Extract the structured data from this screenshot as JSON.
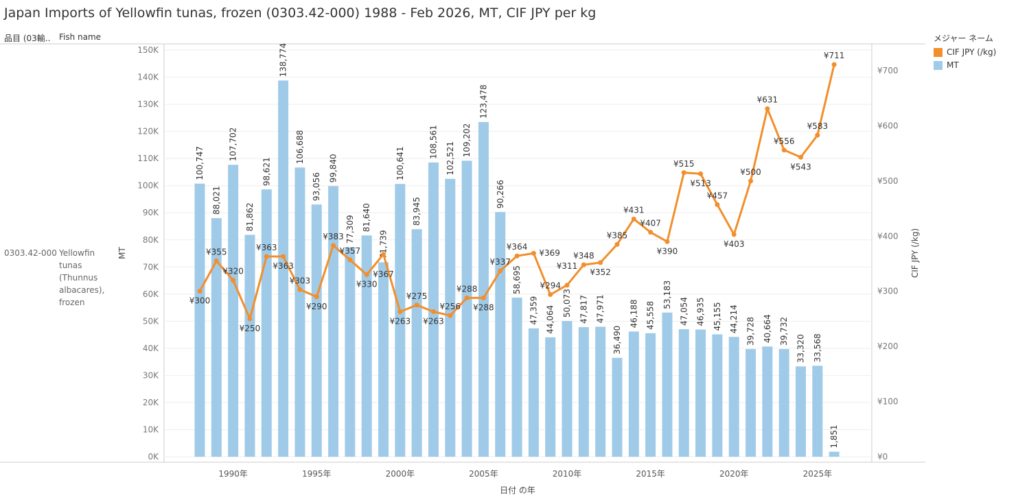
{
  "title": "Japan Imports of Yellowfin tunas, frozen (0303.42-000) 1988 - Feb 2026, MT, CIF JPY per kg",
  "headers": {
    "col1": "品目 (03輸..",
    "col2": "Fish name"
  },
  "row": {
    "code": "0303.42-000",
    "name": "Yellowfin tunas (Thunnus albacares), frozen"
  },
  "legend": {
    "title": "メジャー ネーム",
    "items": [
      {
        "label": "CIF JPY (/kg)",
        "color": "#f28e2b"
      },
      {
        "label": "MT",
        "color": "#a0cbe8"
      }
    ]
  },
  "chart_data": {
    "type": "bar+line",
    "title": "Japan Imports of Yellowfin tunas, frozen (0303.42-000) 1988 - Feb 2026, MT, CIF JPY per kg",
    "xlabel": "日付 の年",
    "ylabel": "MT",
    "y2label": "CIF JPY (/kg)",
    "ylim": [
      0,
      150000
    ],
    "y2lim": [
      0,
      750
    ],
    "yticks": [
      "0K",
      "10K",
      "20K",
      "30K",
      "40K",
      "50K",
      "60K",
      "70K",
      "80K",
      "90K",
      "100K",
      "110K",
      "120K",
      "130K",
      "140K",
      "150K"
    ],
    "y2ticks": [
      "¥0",
      "¥100",
      "¥200",
      "¥300",
      "¥400",
      "¥500",
      "¥600",
      "¥700"
    ],
    "xticks": [
      "1990年",
      "1995年",
      "2000年",
      "2005年",
      "2010年",
      "2015年",
      "2020年",
      "2025年"
    ],
    "x": [
      1988,
      1989,
      1990,
      1991,
      1992,
      1993,
      1994,
      1995,
      1996,
      1997,
      1998,
      1999,
      2000,
      2001,
      2002,
      2003,
      2004,
      2005,
      2006,
      2007,
      2008,
      2009,
      2010,
      2011,
      2012,
      2013,
      2014,
      2015,
      2016,
      2017,
      2018,
      2019,
      2020,
      2021,
      2022,
      2023,
      2024,
      2025,
      2026
    ],
    "series": [
      {
        "name": "MT",
        "type": "bar",
        "color": "#a0cbe8",
        "values": [
          100747,
          88021,
          107702,
          81862,
          98621,
          138774,
          106688,
          93056,
          99840,
          77309,
          81640,
          71739,
          100641,
          83945,
          108561,
          102521,
          109202,
          123478,
          90266,
          58695,
          47359,
          44064,
          50073,
          47817,
          47971,
          36490,
          46188,
          45558,
          53183,
          47054,
          46935,
          45155,
          44214,
          39728,
          40664,
          39732,
          33320,
          33568,
          1851
        ]
      },
      {
        "name": "CIF JPY (/kg)",
        "type": "line",
        "axis": "right",
        "color": "#f28e2b",
        "values": [
          300,
          355,
          320,
          250,
          363,
          363,
          303,
          290,
          383,
          357,
          330,
          367,
          263,
          275,
          263,
          256,
          288,
          288,
          337,
          364,
          369,
          294,
          311,
          348,
          352,
          385,
          431,
          407,
          390,
          515,
          513,
          457,
          403,
          500,
          631,
          556,
          543,
          583,
          711
        ]
      }
    ],
    "grid": true,
    "legend_position": "top-right"
  }
}
